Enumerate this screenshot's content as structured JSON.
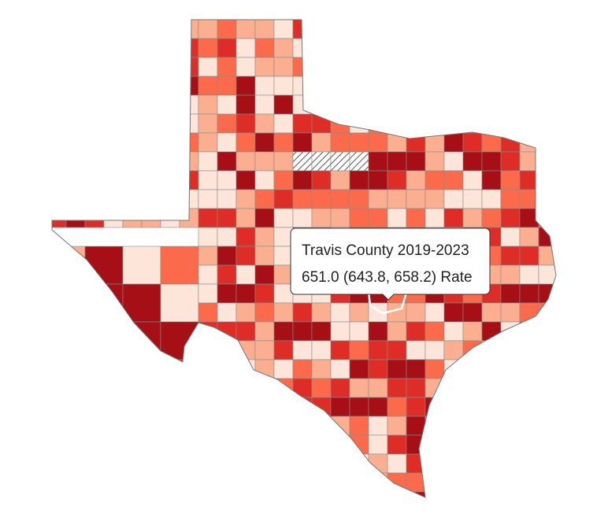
{
  "tooltip": {
    "title": "Travis County 2019-2023",
    "value": "651.0 (643.8, 658.2) Rate"
  }
}
